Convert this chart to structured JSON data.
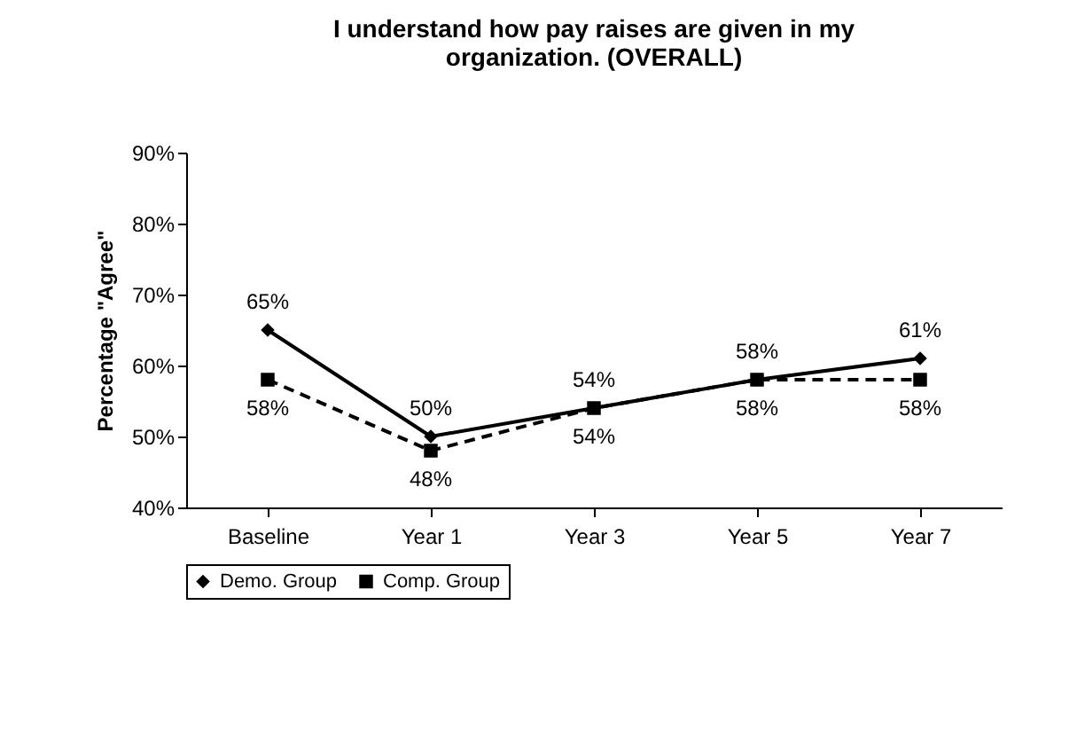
{
  "chart_data": {
    "type": "line",
    "title": "I understand how pay raises are given in my\norganization. (OVERALL)",
    "ylabel": "Percentage \"Agree\"",
    "categories": [
      "Baseline",
      "Year 1",
      "Year 3",
      "Year 5",
      "Year 7"
    ],
    "ylim": [
      40,
      90
    ],
    "yticks": [
      {
        "value": 40,
        "label": "40%"
      },
      {
        "value": 50,
        "label": "50%"
      },
      {
        "value": 60,
        "label": "60%"
      },
      {
        "value": 70,
        "label": "70%"
      },
      {
        "value": 80,
        "label": "80%"
      },
      {
        "value": 90,
        "label": "90%"
      }
    ],
    "series": [
      {
        "name": "Demo. Group",
        "color": "#000000",
        "marker": "diamond",
        "line_style": "solid",
        "values": [
          65,
          50,
          54,
          58,
          61
        ],
        "value_labels": [
          "65%",
          "50%",
          "54%",
          "58%",
          "61%"
        ]
      },
      {
        "name": "Comp. Group",
        "color": "#000000",
        "marker": "square",
        "line_style": "dashed",
        "values": [
          58,
          48,
          54,
          58,
          58
        ],
        "value_labels": [
          "58%",
          "48%",
          "54%",
          "58%",
          "58%"
        ]
      }
    ],
    "legend": "bottom",
    "grid": false
  }
}
